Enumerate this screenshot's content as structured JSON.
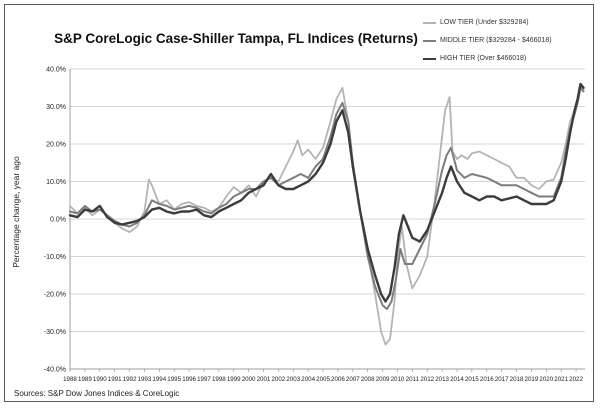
{
  "chart_data": {
    "type": "line",
    "title": "S&P CoreLogic Case-Shiller Tampa, FL Indices (Returns)",
    "ylabel": "Percentage change, year ago",
    "xlabel": "",
    "ylim": [
      -40,
      40
    ],
    "yticks": [
      -40,
      -30,
      -20,
      -10,
      0,
      10,
      20,
      30,
      40
    ],
    "ytick_labels": [
      "-40.0%",
      "-30.0%",
      "-20.0%",
      "-10.0%",
      "0.0%",
      "10.0%",
      "20.0%",
      "30.0%",
      "40.0%"
    ],
    "xlim": [
      1988,
      2022.6
    ],
    "xtick_labels": [
      "1988",
      "1989",
      "1990",
      "1991",
      "1992",
      "1993",
      "1994",
      "1995",
      "1996",
      "1997",
      "1998",
      "1999",
      "2000",
      "2001",
      "2002",
      "2003",
      "2004",
      "2005",
      "2006",
      "2007",
      "2008",
      "2009",
      "2010",
      "2011",
      "2012",
      "2013",
      "2014",
      "2015",
      "2016",
      "2017",
      "2018",
      "2019",
      "2020",
      "2021",
      "2022"
    ],
    "grid": "horizontal",
    "legend_position": "top-right",
    "series": [
      {
        "name": "LOW TIER (Under $329284)",
        "color": "#b4b4b4",
        "x": [
          1988.0,
          1988.5,
          1989.0,
          1989.5,
          1990.0,
          1990.5,
          1991.0,
          1991.5,
          1992.0,
          1992.5,
          1993.0,
          1993.3,
          1993.5,
          1993.8,
          1994.0,
          1994.5,
          1995.0,
          1995.5,
          1996.0,
          1996.5,
          1997.0,
          1997.5,
          1998.0,
          1998.5,
          1999.0,
          1999.5,
          2000.0,
          2000.5,
          2001.0,
          2001.5,
          2002.0,
          2002.5,
          2003.0,
          2003.3,
          2003.6,
          2004.0,
          2004.5,
          2005.0,
          2005.5,
          2005.9,
          2006.3,
          2006.7,
          2007.0,
          2007.5,
          2008.0,
          2008.5,
          2008.9,
          2009.2,
          2009.5,
          2009.8,
          2010.0,
          2010.3,
          2010.6,
          2011.0,
          2011.5,
          2012.0,
          2012.5,
          2013.0,
          2013.2,
          2013.5,
          2013.7,
          2014.0,
          2014.3,
          2014.7,
          2015.0,
          2015.5,
          2016.0,
          2016.5,
          2017.0,
          2017.5,
          2018.0,
          2018.5,
          2019.0,
          2019.5,
          2020.0,
          2020.5,
          2021.0,
          2021.3,
          2021.6,
          2021.9,
          2022.1,
          2022.3,
          2022.5
        ],
        "y": [
          3.5,
          1.5,
          3.0,
          1.0,
          2.5,
          1.0,
          -1.0,
          -2.5,
          -3.5,
          -2.0,
          2.0,
          10.5,
          9.0,
          6.0,
          4.0,
          5.0,
          2.5,
          4.0,
          4.5,
          3.5,
          3.0,
          2.0,
          3.0,
          6.0,
          8.5,
          7.0,
          9.0,
          6.0,
          10.0,
          11.0,
          10.0,
          14.0,
          18.0,
          21.0,
          17.0,
          18.5,
          16.0,
          19.0,
          26.0,
          32.0,
          35.0,
          26.0,
          15.0,
          2.0,
          -9.0,
          -20.0,
          -30.0,
          -33.5,
          -32.0,
          -22.0,
          -10.0,
          -2.0,
          -12.0,
          -18.5,
          -15.0,
          -10.0,
          5.0,
          22.0,
          29.0,
          32.5,
          18.0,
          16.0,
          17.0,
          16.0,
          17.5,
          18.0,
          17.0,
          16.0,
          15.0,
          14.0,
          11.0,
          11.0,
          9.0,
          8.0,
          10.0,
          10.5,
          15.0,
          20.0,
          26.0,
          29.0,
          32.0,
          36.0,
          34.5
        ]
      },
      {
        "name": "MIDDLE TIER ($329284 - $466018)",
        "color": "#7d7d7d",
        "x": [
          1988.0,
          1988.5,
          1989.0,
          1989.5,
          1990.0,
          1990.5,
          1991.0,
          1991.5,
          1992.0,
          1992.5,
          1993.0,
          1993.5,
          1994.0,
          1994.5,
          1995.0,
          1995.5,
          1996.0,
          1996.5,
          1997.0,
          1997.5,
          1998.0,
          1998.5,
          1999.0,
          1999.5,
          2000.0,
          2000.5,
          2001.0,
          2001.5,
          2002.0,
          2002.5,
          2003.0,
          2003.5,
          2004.0,
          2004.5,
          2005.0,
          2005.5,
          2005.9,
          2006.3,
          2006.7,
          2007.0,
          2007.5,
          2008.0,
          2008.5,
          2009.0,
          2009.3,
          2009.6,
          2009.9,
          2010.2,
          2010.5,
          2011.0,
          2011.5,
          2012.0,
          2012.5,
          2013.0,
          2013.3,
          2013.6,
          2014.0,
          2014.5,
          2015.0,
          2015.5,
          2016.0,
          2016.5,
          2017.0,
          2017.5,
          2018.0,
          2018.5,
          2019.0,
          2019.5,
          2020.0,
          2020.5,
          2021.0,
          2021.3,
          2021.6,
          2021.9,
          2022.1,
          2022.3,
          2022.5
        ],
        "y": [
          2.0,
          1.5,
          3.5,
          2.0,
          2.5,
          1.0,
          -0.5,
          -1.5,
          -2.0,
          -1.0,
          1.0,
          5.0,
          4.0,
          3.5,
          2.5,
          3.0,
          3.5,
          3.0,
          2.0,
          1.5,
          3.0,
          4.0,
          6.0,
          7.0,
          8.0,
          8.0,
          10.0,
          11.0,
          9.0,
          10.0,
          11.0,
          12.0,
          11.0,
          14.0,
          16.0,
          22.0,
          28.0,
          31.0,
          26.0,
          15.0,
          2.0,
          -10.0,
          -18.0,
          -23.0,
          -24.0,
          -22.0,
          -16.0,
          -8.0,
          -12.0,
          -12.0,
          -8.0,
          -4.0,
          4.0,
          13.0,
          17.0,
          19.0,
          13.0,
          11.0,
          12.0,
          11.5,
          11.0,
          10.0,
          9.0,
          9.0,
          9.0,
          8.0,
          7.0,
          6.0,
          6.0,
          6.0,
          11.0,
          18.0,
          24.0,
          28.0,
          31.0,
          35.0,
          34.0
        ]
      },
      {
        "name": "HIGH TIER (Over $466018)",
        "color": "#3c3c3c",
        "x": [
          1988.0,
          1988.5,
          1989.0,
          1989.5,
          1990.0,
          1990.5,
          1991.0,
          1991.5,
          1992.0,
          1992.5,
          1993.0,
          1993.5,
          1994.0,
          1994.5,
          1995.0,
          1995.5,
          1996.0,
          1996.5,
          1997.0,
          1997.5,
          1998.0,
          1998.5,
          1999.0,
          1999.5,
          2000.0,
          2000.5,
          2001.0,
          2001.5,
          2002.0,
          2002.5,
          2003.0,
          2003.5,
          2004.0,
          2004.5,
          2005.0,
          2005.5,
          2005.9,
          2006.3,
          2006.7,
          2007.0,
          2007.5,
          2008.0,
          2008.5,
          2008.9,
          2009.2,
          2009.5,
          2009.8,
          2010.1,
          2010.4,
          2010.7,
          2011.0,
          2011.5,
          2012.0,
          2012.5,
          2013.0,
          2013.3,
          2013.6,
          2014.0,
          2014.5,
          2015.0,
          2015.5,
          2016.0,
          2016.5,
          2017.0,
          2017.5,
          2018.0,
          2018.5,
          2019.0,
          2019.5,
          2020.0,
          2020.5,
          2021.0,
          2021.3,
          2021.6,
          2021.9,
          2022.1,
          2022.3,
          2022.5
        ],
        "y": [
          1.0,
          0.5,
          2.5,
          2.0,
          3.5,
          0.5,
          -1.0,
          -1.5,
          -1.0,
          -0.5,
          0.5,
          2.5,
          3.0,
          2.0,
          1.5,
          2.0,
          2.0,
          2.5,
          1.0,
          0.5,
          2.0,
          3.0,
          4.0,
          5.0,
          7.0,
          8.0,
          9.0,
          12.0,
          9.0,
          8.0,
          8.0,
          9.0,
          10.0,
          12.0,
          15.0,
          20.0,
          26.0,
          29.0,
          23.0,
          14.0,
          2.0,
          -8.0,
          -15.0,
          -20.0,
          -22.0,
          -20.0,
          -13.0,
          -4.0,
          1.0,
          -2.0,
          -5.0,
          -6.0,
          -3.0,
          2.0,
          7.0,
          11.0,
          14.0,
          10.0,
          7.0,
          6.0,
          5.0,
          6.0,
          6.0,
          5.0,
          5.5,
          6.0,
          5.0,
          4.0,
          4.0,
          4.0,
          5.0,
          10.0,
          16.0,
          23.0,
          29.0,
          32.0,
          36.0,
          35.0
        ]
      }
    ]
  },
  "source_note": "Sources: S&P Dow Jones Indices & CoreLogic"
}
